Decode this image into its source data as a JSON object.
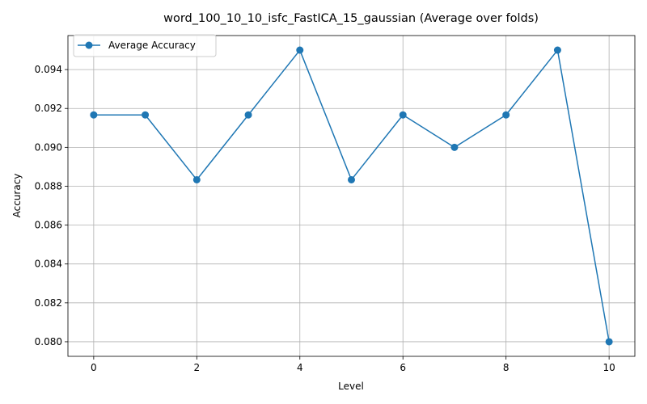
{
  "chart_data": {
    "type": "line",
    "title": "word_100_10_10_isfc_FastICA_15_gaussian (Average over folds)",
    "xlabel": "Level",
    "ylabel": "Accuracy",
    "x": [
      0,
      1,
      2,
      3,
      4,
      5,
      6,
      7,
      8,
      9,
      10
    ],
    "series": [
      {
        "name": "Average Accuracy",
        "values": [
          0.091667,
          0.091667,
          0.088333,
          0.091667,
          0.095,
          0.088333,
          0.091667,
          0.09,
          0.091667,
          0.095,
          0.08
        ],
        "color": "#1f77b4",
        "marker": "circle"
      }
    ],
    "xlim": [
      -0.5,
      10.5
    ],
    "ylim": [
      0.07925,
      0.09575
    ],
    "xticks": [
      "0",
      "2",
      "4",
      "6",
      "8",
      "10"
    ],
    "yticks": [
      "0.080",
      "0.082",
      "0.084",
      "0.086",
      "0.088",
      "0.090",
      "0.092",
      "0.094"
    ],
    "grid": true,
    "legend_position": "top-left"
  }
}
